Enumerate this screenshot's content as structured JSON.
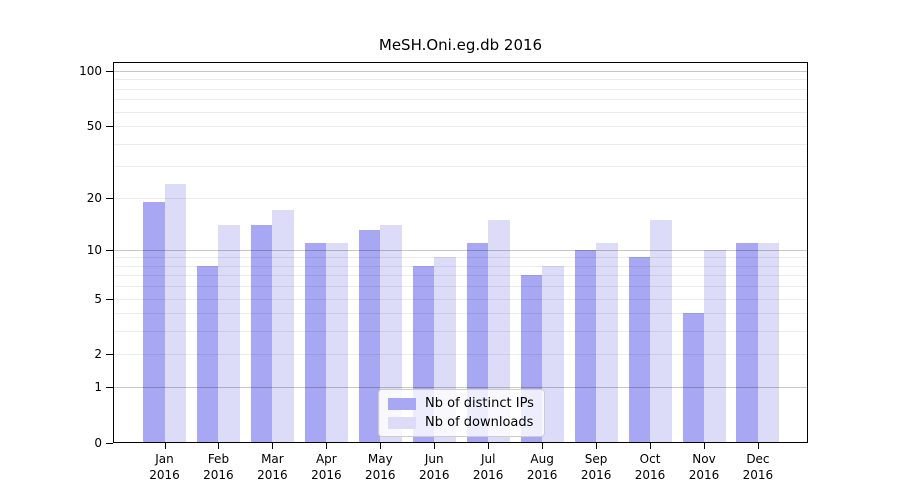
{
  "figure_title": "MeSH.Oni.eg.db 2016",
  "colors": {
    "bar_distinct_ips": "#a7a7f3",
    "bar_downloads": "#dcdcf8",
    "plot_border": "#000000",
    "major_gridline": "rgba(0,0,0,0.22)",
    "minor_gridline": "rgba(0,0,0,0.075)",
    "legend_border": "#cccccc",
    "text": "#000000",
    "background": "#ffffff"
  },
  "chart_data": {
    "type": "bar",
    "title": "MeSH.Oni.eg.db 2016",
    "x_axis": {
      "categories": [
        "Jan",
        "Feb",
        "Mar",
        "Apr",
        "May",
        "Jun",
        "Jul",
        "Aug",
        "Sep",
        "Oct",
        "Nov",
        "Dec"
      ],
      "category_sublabel": "2016"
    },
    "y_axis": {
      "scale": "log1p",
      "range": [
        0,
        112
      ],
      "tick_values": [
        0,
        1,
        2,
        5,
        10,
        20,
        50,
        100
      ],
      "major_gridlines": [
        1,
        10,
        100
      ],
      "minor_gridlines": [
        2,
        3,
        4,
        5,
        6,
        7,
        8,
        9,
        20,
        30,
        40,
        50,
        60,
        70,
        80,
        90
      ],
      "grid": true
    },
    "series": [
      {
        "name": "Nb of distinct IPs",
        "color": "#a7a7f3",
        "values": [
          19,
          8,
          14,
          11,
          13,
          8,
          11,
          7,
          10,
          9,
          4,
          11
        ]
      },
      {
        "name": "Nb of downloads",
        "color": "#dcdcf8",
        "values": [
          24,
          14,
          17,
          11,
          14,
          9,
          15,
          8,
          11,
          15,
          10,
          11
        ]
      }
    ],
    "legend_position": "lower center"
  }
}
